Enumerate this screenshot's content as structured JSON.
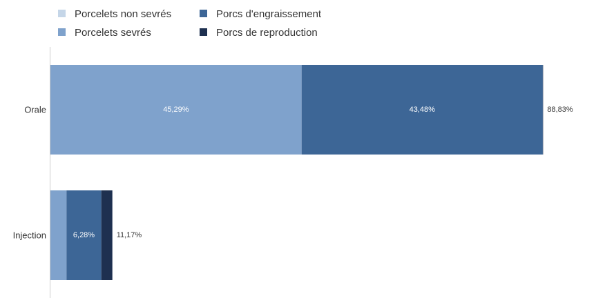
{
  "chart_data": {
    "type": "bar",
    "orientation": "horizontal",
    "stacked": true,
    "categories": [
      "Orale",
      "Injection"
    ],
    "series": [
      {
        "name": "Porcelets non sevrés",
        "color": "#c5d6e8",
        "values": [
          0.0,
          0.0
        ]
      },
      {
        "name": "Porcelets sevrés",
        "color": "#7fa2cc",
        "values": [
          45.29,
          2.9
        ]
      },
      {
        "name": "Porcs d'engraissement",
        "color": "#3d6696",
        "values": [
          43.48,
          6.28
        ]
      },
      {
        "name": "Porcs de reproduction",
        "color": "#1e3050",
        "values": [
          0.06,
          1.99
        ]
      }
    ],
    "segment_labels": [
      [
        "",
        "45,29%",
        "43,48%",
        ""
      ],
      [
        "",
        "",
        "6,28%",
        ""
      ]
    ],
    "totals": [
      88.83,
      11.17
    ],
    "total_labels": [
      "88,83%",
      "11,17%"
    ],
    "xlim": [
      0,
      90.9
    ],
    "grid": false,
    "legend_position": "top-left",
    "legend_columns": 2
  }
}
